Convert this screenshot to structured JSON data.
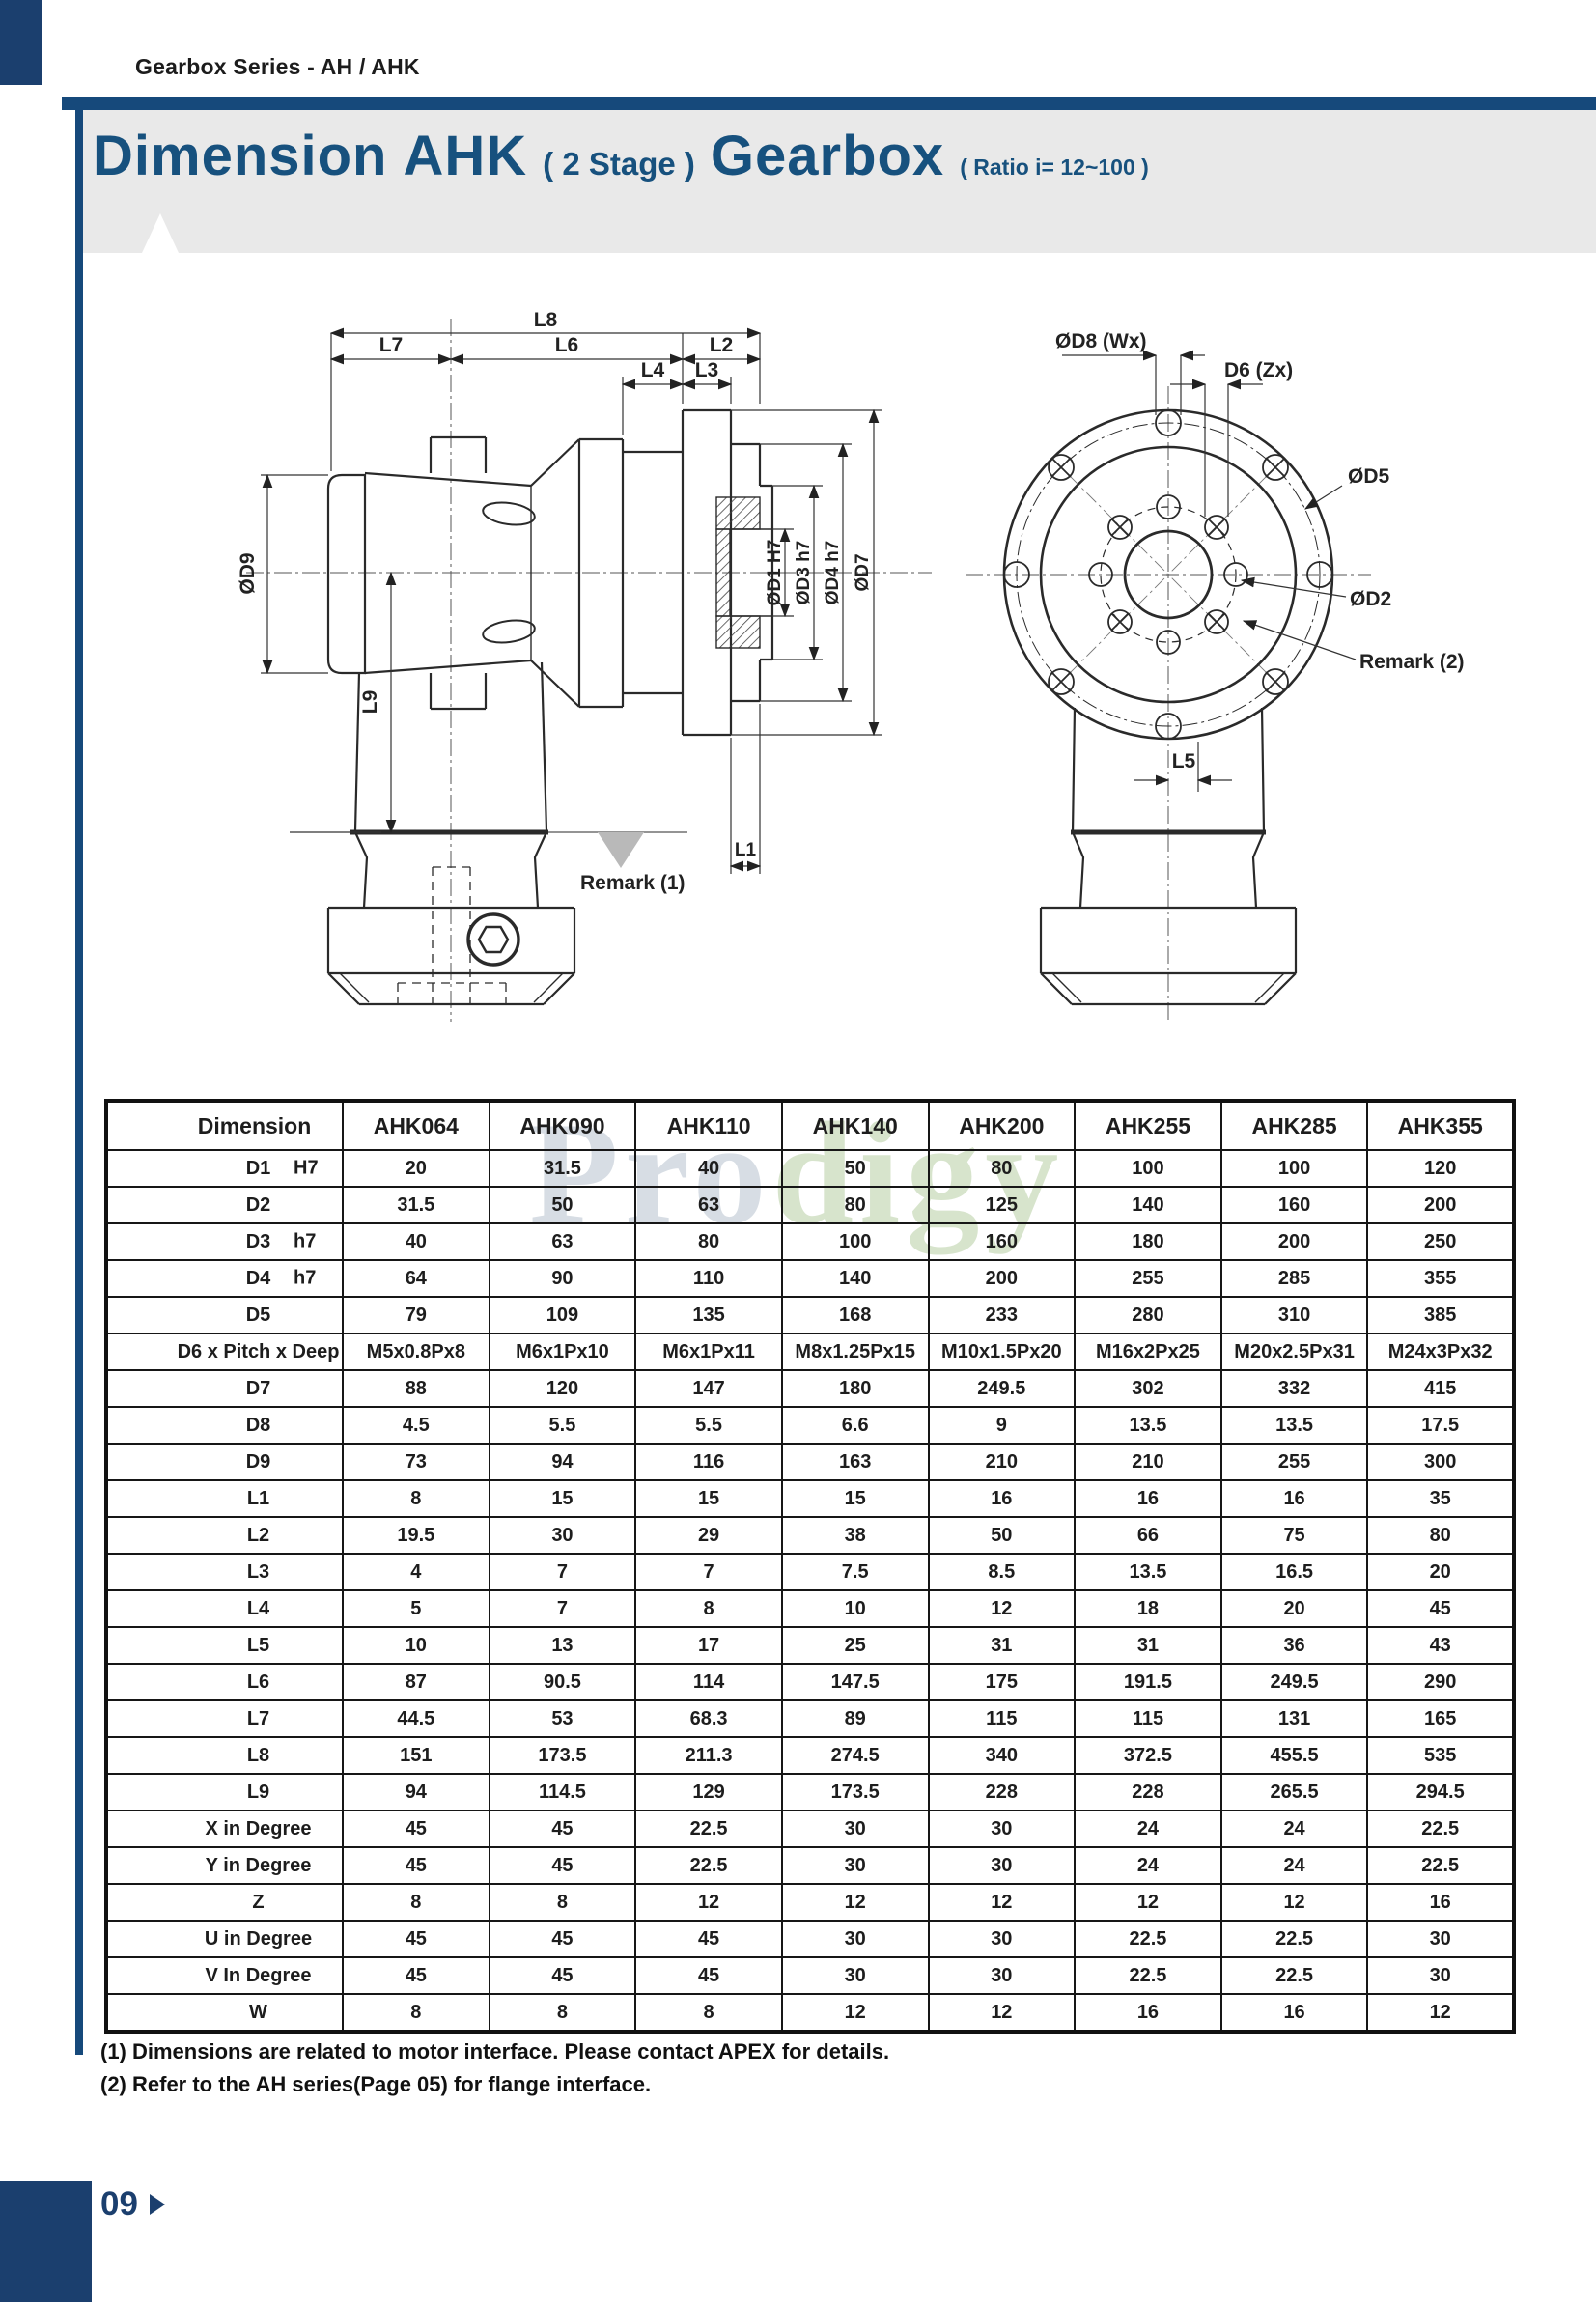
{
  "page": {
    "header_series": "Gearbox Series - AH / AHK",
    "title": {
      "main": "Dimension",
      "model": "AHK",
      "stage": "( 2 Stage )",
      "product": "Gearbox",
      "ratio": "( Ratio i= 12~100 )"
    },
    "watermark": {
      "part1": "Pro",
      "part2": "digy"
    },
    "notes": [
      "(1) Dimensions are related to motor interface. Please contact APEX for details.",
      "(2) Refer to the AH series(Page 05) for flange interface.",
      "APEX"
    ],
    "page_number": "09",
    "colors": {
      "accent_blue": "#16497B",
      "dark_blue_block": "#1B3F6E",
      "title_blue": "#17517E",
      "band_gray": "#E9E9E9",
      "remark_triangle_gray": "#B9B9B9"
    }
  },
  "drawing": {
    "labels": {
      "l8": "L8",
      "l7": "L7",
      "l6": "L6",
      "l2": "L2",
      "l4": "L4",
      "l3": "L3",
      "d9": "ØD9",
      "l9": "L9",
      "d1": "ØD1 H7",
      "d3": "ØD3 h7",
      "d4": "ØD4 h7",
      "d7": "ØD7",
      "l1": "L1",
      "remark1": "Remark (1)",
      "d8w": "ØD8 (Wx)",
      "d6z": "D6 (Zx)",
      "d5": "ØD5",
      "d2": "ØD2",
      "remark2": "Remark (2)",
      "l5": "L5"
    }
  },
  "table": {
    "header": [
      "Dimension",
      "AHK064",
      "AHK090",
      "AHK110",
      "AHK140",
      "AHK200",
      "AHK255",
      "AHK285",
      "AHK355"
    ],
    "rows": [
      {
        "label": "D1",
        "tol": "H7",
        "values": [
          "20",
          "31.5",
          "40",
          "50",
          "80",
          "100",
          "100",
          "120"
        ]
      },
      {
        "label": "D2",
        "tol": "",
        "values": [
          "31.5",
          "50",
          "63",
          "80",
          "125",
          "140",
          "160",
          "200"
        ]
      },
      {
        "label": "D3",
        "tol": "h7",
        "values": [
          "40",
          "63",
          "80",
          "100",
          "160",
          "180",
          "200",
          "250"
        ]
      },
      {
        "label": "D4",
        "tol": "h7",
        "values": [
          "64",
          "90",
          "110",
          "140",
          "200",
          "255",
          "285",
          "355"
        ]
      },
      {
        "label": "D5",
        "tol": "",
        "values": [
          "79",
          "109",
          "135",
          "168",
          "233",
          "280",
          "310",
          "385"
        ]
      },
      {
        "label": "D6 x Pitch x Deep",
        "tol": "",
        "values": [
          "M5x0.8Px8",
          "M6x1Px10",
          "M6x1Px11",
          "M8x1.25Px15",
          "M10x1.5Px20",
          "M16x2Px25",
          "M20x2.5Px31",
          "M24x3Px32"
        ]
      },
      {
        "label": "D7",
        "tol": "",
        "values": [
          "88",
          "120",
          "147",
          "180",
          "249.5",
          "302",
          "332",
          "415"
        ]
      },
      {
        "label": "D8",
        "tol": "",
        "values": [
          "4.5",
          "5.5",
          "5.5",
          "6.6",
          "9",
          "13.5",
          "13.5",
          "17.5"
        ]
      },
      {
        "label": "D9",
        "tol": "",
        "values": [
          "73",
          "94",
          "116",
          "163",
          "210",
          "210",
          "255",
          "300"
        ]
      },
      {
        "label": "L1",
        "tol": "",
        "values": [
          "8",
          "15",
          "15",
          "15",
          "16",
          "16",
          "16",
          "35"
        ]
      },
      {
        "label": "L2",
        "tol": "",
        "values": [
          "19.5",
          "30",
          "29",
          "38",
          "50",
          "66",
          "75",
          "80"
        ]
      },
      {
        "label": "L3",
        "tol": "",
        "values": [
          "4",
          "7",
          "7",
          "7.5",
          "8.5",
          "13.5",
          "16.5",
          "20"
        ]
      },
      {
        "label": "L4",
        "tol": "",
        "values": [
          "5",
          "7",
          "8",
          "10",
          "12",
          "18",
          "20",
          "45"
        ]
      },
      {
        "label": "L5",
        "tol": "",
        "values": [
          "10",
          "13",
          "17",
          "25",
          "31",
          "31",
          "36",
          "43"
        ]
      },
      {
        "label": "L6",
        "tol": "",
        "values": [
          "87",
          "90.5",
          "114",
          "147.5",
          "175",
          "191.5",
          "249.5",
          "290"
        ]
      },
      {
        "label": "L7",
        "tol": "",
        "values": [
          "44.5",
          "53",
          "68.3",
          "89",
          "115",
          "115",
          "131",
          "165"
        ]
      },
      {
        "label": "L8",
        "tol": "",
        "values": [
          "151",
          "173.5",
          "211.3",
          "274.5",
          "340",
          "372.5",
          "455.5",
          "535"
        ]
      },
      {
        "label": "L9",
        "tol": "",
        "values": [
          "94",
          "114.5",
          "129",
          "173.5",
          "228",
          "228",
          "265.5",
          "294.5"
        ]
      },
      {
        "label": "X in Degree",
        "tol": "",
        "values": [
          "45",
          "45",
          "22.5",
          "30",
          "30",
          "24",
          "24",
          "22.5"
        ]
      },
      {
        "label": "Y in Degree",
        "tol": "",
        "values": [
          "45",
          "45",
          "22.5",
          "30",
          "30",
          "24",
          "24",
          "22.5"
        ]
      },
      {
        "label": "Z",
        "tol": "",
        "values": [
          "8",
          "8",
          "12",
          "12",
          "12",
          "12",
          "12",
          "16"
        ]
      },
      {
        "label": "U in Degree",
        "tol": "",
        "values": [
          "45",
          "45",
          "45",
          "30",
          "30",
          "22.5",
          "22.5",
          "30"
        ]
      },
      {
        "label": "V In Degree",
        "tol": "",
        "values": [
          "45",
          "45",
          "45",
          "30",
          "30",
          "22.5",
          "22.5",
          "30"
        ]
      },
      {
        "label": "W",
        "tol": "",
        "values": [
          "8",
          "8",
          "8",
          "12",
          "12",
          "16",
          "16",
          "12"
        ]
      }
    ]
  }
}
